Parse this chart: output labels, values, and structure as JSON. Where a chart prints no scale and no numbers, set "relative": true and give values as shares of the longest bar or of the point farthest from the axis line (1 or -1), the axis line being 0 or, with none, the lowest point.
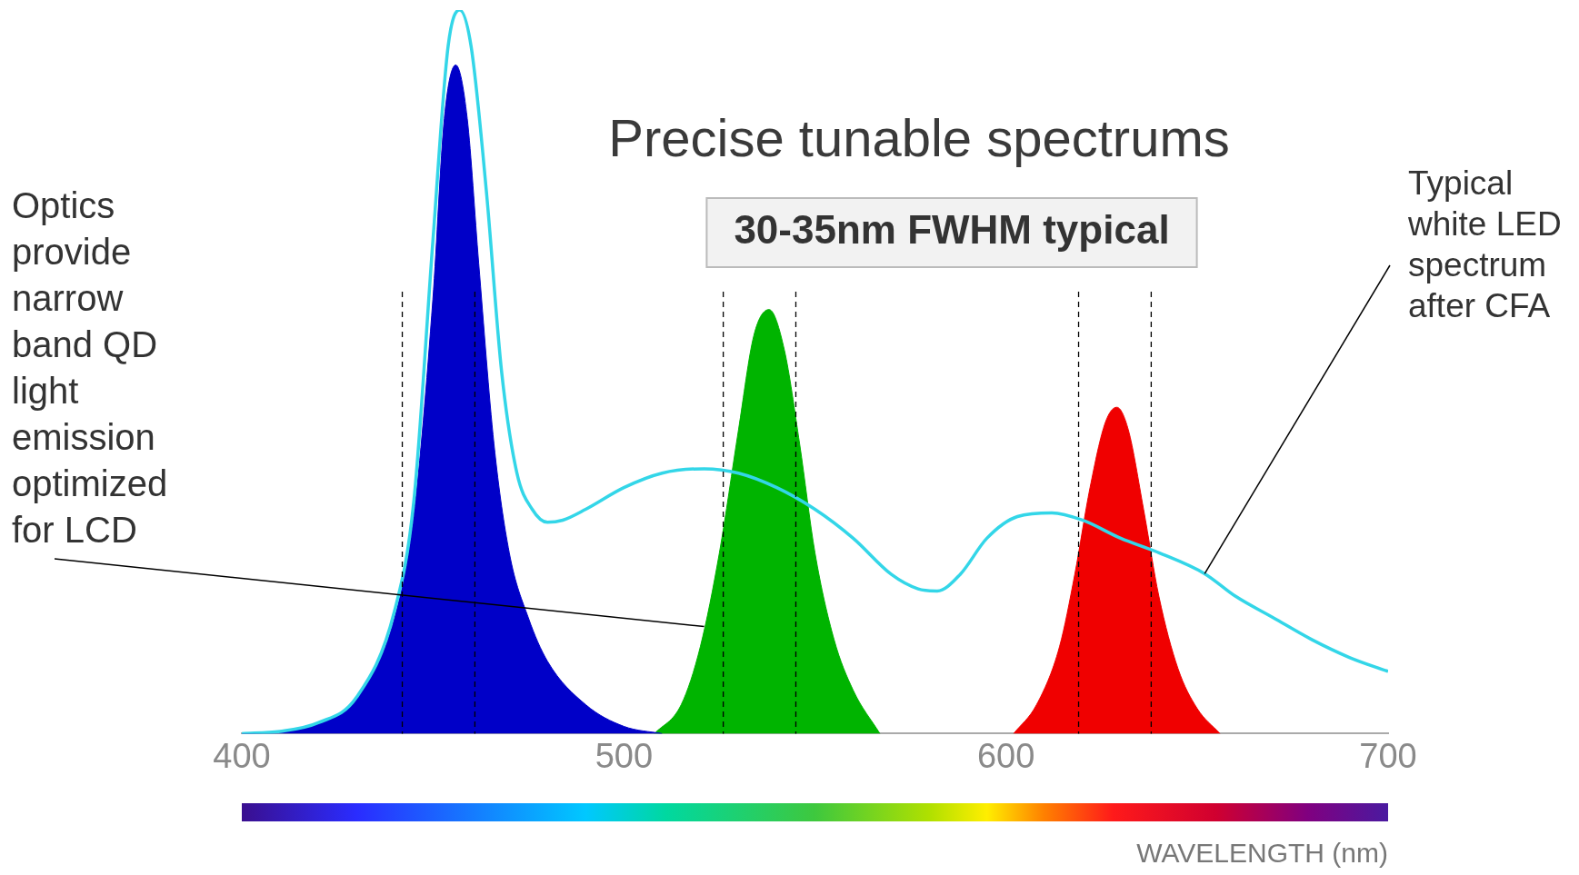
{
  "chart_data": {
    "type": "area",
    "title": "Precise tunable spectrums",
    "xlabel": "WAVELENGTH (nm)",
    "relative": true,
    "xlim": [
      400,
      700
    ],
    "xticks": [
      400,
      500,
      600,
      700
    ],
    "grid": false,
    "legend": false,
    "series": [
      {
        "type": "line",
        "color": "#33d6e8",
        "x": [
          400,
          410,
          420,
          430,
          440,
          445,
          450,
          454,
          457,
          460,
          464,
          468,
          472,
          476,
          480,
          484,
          490,
          500,
          510,
          521,
          530,
          540,
          550,
          560,
          570,
          577,
          582,
          588,
          595,
          603,
          612,
          620,
          630,
          640,
          652,
          660,
          670,
          680,
          690,
          700
        ],
        "values": [
          0,
          0.003,
          0.015,
          0.05,
          0.17,
          0.32,
          0.68,
          0.95,
          1,
          0.95,
          0.75,
          0.5,
          0.36,
          0.31,
          0.292,
          0.295,
          0.31,
          0.34,
          0.36,
          0.366,
          0.36,
          0.34,
          0.31,
          0.27,
          0.22,
          0.2,
          0.197,
          0.22,
          0.27,
          0.3,
          0.305,
          0.295,
          0.27,
          0.25,
          0.221,
          0.19,
          0.16,
          0.13,
          0.105,
          0.086
        ]
      },
      {
        "color": "#0000c8",
        "x": [
          400,
          410,
          420,
          430,
          440,
          445,
          450,
          453,
          456,
          459,
          462,
          466,
          470,
          475,
          480,
          490,
          500,
          510
        ],
        "values": [
          0,
          0.003,
          0.015,
          0.05,
          0.16,
          0.3,
          0.6,
          0.85,
          0.924,
          0.85,
          0.65,
          0.4,
          0.25,
          0.16,
          0.1,
          0.04,
          0.01,
          0
        ]
      },
      {
        "color": "#00b400",
        "x": [
          508,
          515,
          520,
          525,
          530,
          534,
          538,
          542,
          546,
          550,
          555,
          560,
          567
        ],
        "values": [
          0,
          0.04,
          0.12,
          0.25,
          0.42,
          0.55,
          0.586,
          0.53,
          0.4,
          0.25,
          0.13,
          0.06,
          0
        ]
      },
      {
        "color": "#f00000",
        "x": [
          602,
          608,
          614,
          618,
          622,
          626,
          629,
          632,
          636,
          640,
          645,
          650,
          656
        ],
        "values": [
          0,
          0.04,
          0.12,
          0.22,
          0.34,
          0.43,
          0.451,
          0.42,
          0.31,
          0.19,
          0.09,
          0.035,
          0
        ]
      }
    ],
    "ref_lines": [
      {
        "axis": "x",
        "value": 442,
        "line_style": "dashed",
        "color": "#000000"
      },
      {
        "axis": "x",
        "value": 461,
        "line_style": "dashed",
        "color": "#000000"
      },
      {
        "axis": "x",
        "value": 526,
        "line_style": "dashed",
        "color": "#000000"
      },
      {
        "axis": "x",
        "value": 545,
        "line_style": "dashed",
        "color": "#000000"
      },
      {
        "axis": "x",
        "value": 619,
        "line_style": "dashed",
        "color": "#000000"
      },
      {
        "axis": "x",
        "value": 638,
        "line_style": "dashed",
        "color": "#000000"
      }
    ],
    "annotations": [
      {
        "text": "Optics provide narrow band QD light emission optimized for LCD",
        "x": 521,
        "y": 0.148
      },
      "30-35nm FWHM typical",
      {
        "text": "Typical white LED spectrum after CFA",
        "x": 652,
        "y": 0.221
      }
    ]
  }
}
